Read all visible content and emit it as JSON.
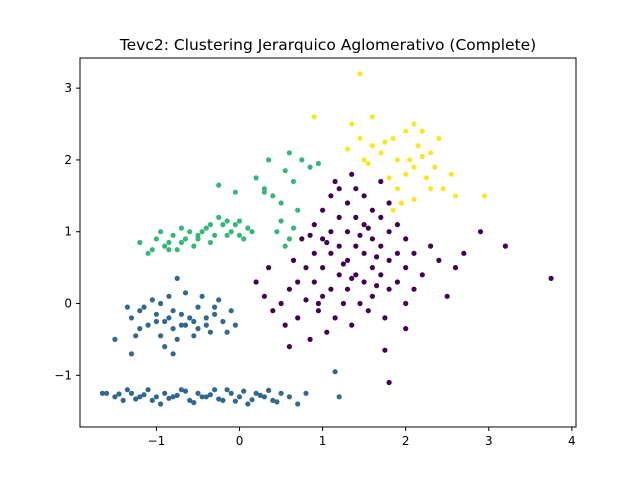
{
  "chart_data": {
    "type": "scatter",
    "title": "Tevc2: Clustering Jerarquico Aglomerativo (Complete)",
    "xlabel": "",
    "ylabel": "",
    "xlim": [
      -1.92,
      4.05
    ],
    "ylim": [
      -1.72,
      3.42
    ],
    "grid": false,
    "x_ticks": [
      {
        "value": -1,
        "label": "−1"
      },
      {
        "value": 0,
        "label": "0"
      },
      {
        "value": 1,
        "label": "1"
      },
      {
        "value": 2,
        "label": "2"
      },
      {
        "value": 3,
        "label": "3"
      },
      {
        "value": 4,
        "label": "4"
      }
    ],
    "y_ticks": [
      {
        "value": -1,
        "label": "−1"
      },
      {
        "value": 0,
        "label": "0"
      },
      {
        "value": 1,
        "label": "1"
      },
      {
        "value": 2,
        "label": "2"
      },
      {
        "value": 3,
        "label": "3"
      }
    ],
    "series": [
      {
        "color": "#440154",
        "points": [
          [
            0.2,
            0.3
          ],
          [
            0.3,
            0.1
          ],
          [
            0.4,
            -0.1
          ],
          [
            0.35,
            0.5
          ],
          [
            0.5,
            0.0
          ],
          [
            0.55,
            -0.3
          ],
          [
            0.6,
            0.2
          ],
          [
            0.65,
            0.6
          ],
          [
            0.7,
            0.3
          ],
          [
            0.7,
            -0.2
          ],
          [
            0.75,
            0.9
          ],
          [
            0.8,
            0.5
          ],
          [
            0.8,
            0.05
          ],
          [
            0.85,
            -0.5
          ],
          [
            0.9,
            1.1
          ],
          [
            0.9,
            0.7
          ],
          [
            0.9,
            0.3
          ],
          [
            0.95,
            -0.1
          ],
          [
            1.0,
            1.3
          ],
          [
            1.0,
            0.9
          ],
          [
            1.0,
            0.5
          ],
          [
            1.0,
            0.1
          ],
          [
            1.05,
            -0.4
          ],
          [
            1.1,
            1.5
          ],
          [
            1.1,
            1.0
          ],
          [
            1.1,
            0.7
          ],
          [
            1.1,
            0.2
          ],
          [
            1.15,
            -0.2
          ],
          [
            1.2,
            1.6
          ],
          [
            1.2,
            1.2
          ],
          [
            1.2,
            0.8
          ],
          [
            1.2,
            0.4
          ],
          [
            1.25,
            0.0
          ],
          [
            1.3,
            1.4
          ],
          [
            1.3,
            1.0
          ],
          [
            1.3,
            0.6
          ],
          [
            1.3,
            0.2
          ],
          [
            1.35,
            -0.3
          ],
          [
            1.4,
            1.6
          ],
          [
            1.4,
            1.2
          ],
          [
            1.4,
            0.8
          ],
          [
            1.4,
            0.4
          ],
          [
            1.45,
            0.0
          ],
          [
            1.5,
            1.5
          ],
          [
            1.5,
            1.1
          ],
          [
            1.5,
            0.7
          ],
          [
            1.5,
            0.3
          ],
          [
            1.55,
            -0.1
          ],
          [
            1.6,
            1.3
          ],
          [
            1.6,
            0.9
          ],
          [
            1.6,
            0.5
          ],
          [
            1.6,
            0.1
          ],
          [
            1.7,
            1.7
          ],
          [
            1.7,
            1.2
          ],
          [
            1.7,
            0.8
          ],
          [
            1.7,
            0.4
          ],
          [
            1.75,
            -0.2
          ],
          [
            1.8,
            1.4
          ],
          [
            1.8,
            1.0
          ],
          [
            1.8,
            0.6
          ],
          [
            1.8,
            0.2
          ],
          [
            1.9,
            1.1
          ],
          [
            1.9,
            0.7
          ],
          [
            1.9,
            0.3
          ],
          [
            2.0,
            0.9
          ],
          [
            2.0,
            0.5
          ],
          [
            2.0,
            0.0
          ],
          [
            2.1,
            0.7
          ],
          [
            2.1,
            0.2
          ],
          [
            2.2,
            0.4
          ],
          [
            2.3,
            0.8
          ],
          [
            2.4,
            0.6
          ],
          [
            2.5,
            0.1
          ],
          [
            2.6,
            0.5
          ],
          [
            2.7,
            0.7
          ],
          [
            2.9,
            1.0
          ],
          [
            3.2,
            0.8
          ],
          [
            3.75,
            0.35
          ],
          [
            1.8,
            -1.1
          ],
          [
            1.75,
            -0.65
          ],
          [
            2.0,
            -0.35
          ],
          [
            1.15,
            1.7
          ],
          [
            1.35,
            1.8
          ],
          [
            0.6,
            -0.6
          ],
          [
            0.95,
            0.0
          ],
          [
            1.25,
            0.55
          ],
          [
            1.45,
            0.95
          ],
          [
            1.65,
            0.65
          ],
          [
            1.55,
            1.05
          ],
          [
            1.05,
            0.85
          ],
          [
            0.85,
            0.95
          ],
          [
            1.35,
            0.35
          ],
          [
            1.65,
            0.25
          ]
        ]
      },
      {
        "color": "#31688e",
        "points": [
          [
            -1.6,
            -1.25
          ],
          [
            -1.5,
            -1.3
          ],
          [
            -1.4,
            -1.35
          ],
          [
            -1.3,
            -1.25
          ],
          [
            -1.2,
            -1.3
          ],
          [
            -1.1,
            -1.2
          ],
          [
            -1.0,
            -1.3
          ],
          [
            -0.9,
            -1.25
          ],
          [
            -0.8,
            -1.3
          ],
          [
            -0.7,
            -1.2
          ],
          [
            -0.6,
            -1.35
          ],
          [
            -0.5,
            -1.25
          ],
          [
            -0.4,
            -1.3
          ],
          [
            -0.3,
            -1.2
          ],
          [
            -0.2,
            -1.35
          ],
          [
            -0.1,
            -1.25
          ],
          [
            0.0,
            -1.3
          ],
          [
            0.1,
            -1.4
          ],
          [
            0.2,
            -1.25
          ],
          [
            0.3,
            -1.3
          ],
          [
            0.4,
            -1.35
          ],
          [
            0.5,
            -1.25
          ],
          [
            0.6,
            -1.3
          ],
          [
            0.7,
            -1.4
          ],
          [
            0.8,
            -1.25
          ],
          [
            1.15,
            -0.95
          ],
          [
            1.2,
            -1.3
          ],
          [
            -1.65,
            -1.25
          ],
          [
            -0.95,
            -1.4
          ],
          [
            -0.85,
            -1.32
          ],
          [
            -0.75,
            -1.28
          ],
          [
            -0.65,
            -1.22
          ],
          [
            -0.55,
            -1.38
          ],
          [
            -0.45,
            -1.3
          ],
          [
            -0.35,
            -1.27
          ],
          [
            -0.25,
            -1.33
          ],
          [
            -0.15,
            -1.2
          ],
          [
            -0.05,
            -1.36
          ],
          [
            0.05,
            -1.22
          ],
          [
            0.15,
            -1.34
          ],
          [
            0.25,
            -1.28
          ],
          [
            0.35,
            -1.21
          ],
          [
            0.45,
            -1.37
          ],
          [
            -1.35,
            -1.2
          ],
          [
            -1.25,
            -1.33
          ],
          [
            -1.15,
            -1.27
          ],
          [
            -1.05,
            -1.35
          ],
          [
            -1.45,
            -1.26
          ],
          [
            -1.3,
            -0.2
          ],
          [
            -1.2,
            -0.1
          ],
          [
            -1.1,
            -0.3
          ],
          [
            -1.0,
            -0.15
          ],
          [
            -0.9,
            -0.25
          ],
          [
            -0.8,
            -0.1
          ],
          [
            -0.7,
            -0.3
          ],
          [
            -0.6,
            -0.2
          ],
          [
            -0.5,
            -0.05
          ],
          [
            -0.4,
            -0.3
          ],
          [
            -0.3,
            -0.15
          ],
          [
            -0.2,
            -0.25
          ],
          [
            -0.1,
            -0.1
          ],
          [
            -1.2,
            -0.35
          ],
          [
            -1.05,
            0.05
          ],
          [
            -0.95,
            -0.45
          ],
          [
            -0.85,
            0.1
          ],
          [
            -0.75,
            -0.5
          ],
          [
            -0.65,
            0.15
          ],
          [
            -0.55,
            -0.45
          ],
          [
            -0.45,
            0.1
          ],
          [
            -0.35,
            -0.4
          ],
          [
            -0.25,
            0.05
          ],
          [
            -1.35,
            -0.05
          ],
          [
            -1.25,
            -0.45
          ],
          [
            -0.75,
            0.35
          ],
          [
            -0.15,
            -0.4
          ],
          [
            -0.05,
            -0.3
          ],
          [
            -1.5,
            -0.5
          ],
          [
            -1.3,
            -0.7
          ],
          [
            -0.9,
            -0.6
          ],
          [
            -0.8,
            -0.7
          ],
          [
            -1.0,
            -0.25
          ],
          [
            -0.85,
            -0.2
          ],
          [
            -0.7,
            -0.15
          ],
          [
            -0.55,
            -0.25
          ],
          [
            -0.4,
            -0.2
          ],
          [
            -1.15,
            -0.05
          ],
          [
            -0.95,
            0.0
          ],
          [
            -0.8,
            -0.35
          ],
          [
            -0.65,
            -0.3
          ],
          [
            -0.5,
            -0.35
          ],
          [
            -0.3,
            -0.05
          ]
        ]
      },
      {
        "color": "#35b779",
        "points": [
          [
            -1.2,
            0.85
          ],
          [
            -1.0,
            0.9
          ],
          [
            -0.9,
            0.8
          ],
          [
            -0.8,
            0.95
          ],
          [
            -0.7,
            0.85
          ],
          [
            -0.6,
            1.0
          ],
          [
            -0.5,
            0.9
          ],
          [
            -0.4,
            1.05
          ],
          [
            -0.3,
            0.95
          ],
          [
            -0.2,
            1.1
          ],
          [
            -0.1,
            1.0
          ],
          [
            0.0,
            1.15
          ],
          [
            0.1,
            1.05
          ],
          [
            -1.05,
            0.75
          ],
          [
            -0.95,
            1.0
          ],
          [
            -0.85,
            0.85
          ],
          [
            -0.75,
            0.75
          ],
          [
            -0.65,
            0.9
          ],
          [
            -0.55,
            0.8
          ],
          [
            -0.45,
            1.0
          ],
          [
            -0.35,
            0.85
          ],
          [
            -0.25,
            1.2
          ],
          [
            -0.15,
            0.95
          ],
          [
            -0.05,
            1.1
          ],
          [
            0.05,
            0.9
          ],
          [
            0.15,
            1.0
          ],
          [
            -0.25,
            1.65
          ],
          [
            -0.05,
            1.55
          ],
          [
            0.2,
            1.75
          ],
          [
            0.3,
            1.6
          ],
          [
            0.4,
            1.5
          ],
          [
            0.5,
            1.4
          ],
          [
            0.55,
            1.85
          ],
          [
            0.6,
            2.1
          ],
          [
            0.65,
            1.7
          ],
          [
            0.7,
            1.3
          ],
          [
            0.75,
            2.0
          ],
          [
            0.85,
            1.9
          ],
          [
            0.95,
            1.95
          ],
          [
            0.5,
            1.15
          ],
          [
            0.6,
            0.9
          ],
          [
            0.55,
            0.8
          ],
          [
            0.65,
            1.05
          ],
          [
            0.45,
            1.0
          ],
          [
            0.35,
            2.0
          ],
          [
            0.3,
            1.55
          ],
          [
            -1.1,
            0.7
          ],
          [
            -0.85,
            0.75
          ],
          [
            -0.7,
            1.05
          ],
          [
            -0.5,
            0.95
          ],
          [
            -0.35,
            1.1
          ],
          [
            -0.15,
            1.15
          ],
          [
            0.0,
            0.95
          ]
        ]
      },
      {
        "color": "#fde725",
        "points": [
          [
            1.45,
            3.2
          ],
          [
            1.6,
            2.6
          ],
          [
            1.35,
            2.5
          ],
          [
            0.9,
            2.6
          ],
          [
            1.45,
            2.3
          ],
          [
            1.3,
            2.15
          ],
          [
            1.5,
            2.0
          ],
          [
            1.6,
            2.2
          ],
          [
            1.7,
            2.1
          ],
          [
            1.85,
            2.3
          ],
          [
            1.9,
            2.0
          ],
          [
            2.0,
            2.4
          ],
          [
            2.1,
            2.5
          ],
          [
            2.15,
            2.2
          ],
          [
            2.2,
            2.4
          ],
          [
            2.3,
            2.1
          ],
          [
            2.4,
            2.3
          ],
          [
            2.35,
            1.9
          ],
          [
            2.0,
            1.8
          ],
          [
            2.1,
            1.9
          ],
          [
            2.25,
            1.75
          ],
          [
            2.45,
            1.6
          ],
          [
            2.55,
            1.8
          ],
          [
            2.6,
            1.5
          ],
          [
            2.95,
            1.5
          ],
          [
            1.9,
            1.6
          ],
          [
            1.95,
            1.4
          ],
          [
            1.85,
            1.3
          ],
          [
            2.1,
            1.45
          ],
          [
            2.3,
            1.6
          ],
          [
            1.8,
            1.75
          ],
          [
            2.05,
            2.0
          ],
          [
            2.2,
            2.05
          ],
          [
            1.75,
            2.25
          ],
          [
            1.55,
            1.95
          ]
        ]
      }
    ]
  }
}
